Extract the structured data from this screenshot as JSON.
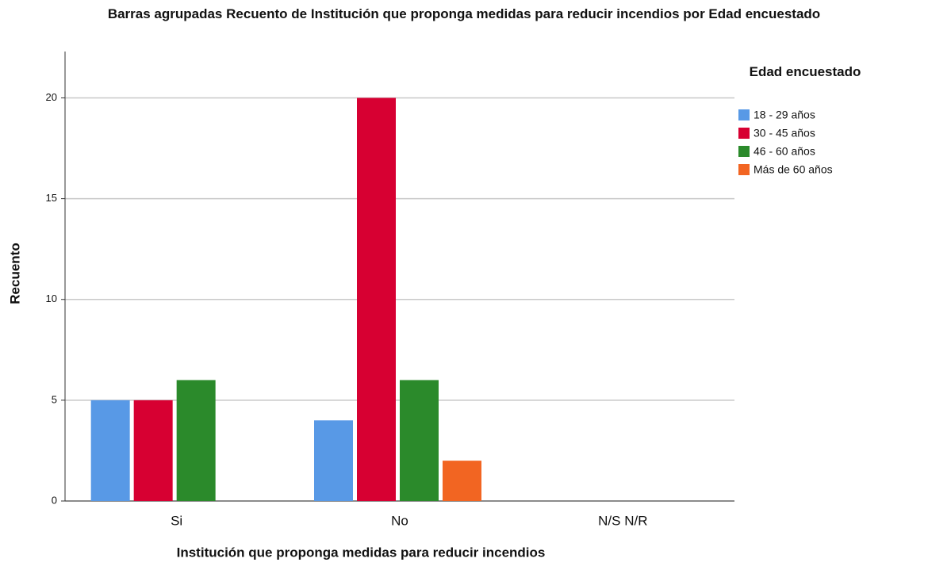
{
  "chart_data": {
    "type": "bar",
    "title": "Barras agrupadas Recuento de Institución que proponga medidas para reducir incendios por Edad encuestado",
    "xlabel": "Institución que proponga medidas para reducir incendios",
    "ylabel": "Recuento",
    "legend_title": "Edad encuestado",
    "legend": "right",
    "categories": [
      "Si",
      "No",
      "N/S N/R"
    ],
    "series": [
      {
        "name": "18 - 29 años",
        "color": "#5899e6",
        "values": [
          5,
          4,
          null
        ]
      },
      {
        "name": "30 - 45 años",
        "color": "#d70032",
        "values": [
          5,
          20,
          null
        ]
      },
      {
        "name": "46 - 60 años",
        "color": "#2b8a2b",
        "values": [
          6,
          6,
          null
        ]
      },
      {
        "name": "Más de 60 años",
        "color": "#f26522",
        "values": [
          null,
          2,
          null
        ]
      }
    ],
    "ylim": [
      0,
      22.3
    ],
    "yticks": [
      0,
      5,
      10,
      15,
      20
    ],
    "grid": true
  }
}
